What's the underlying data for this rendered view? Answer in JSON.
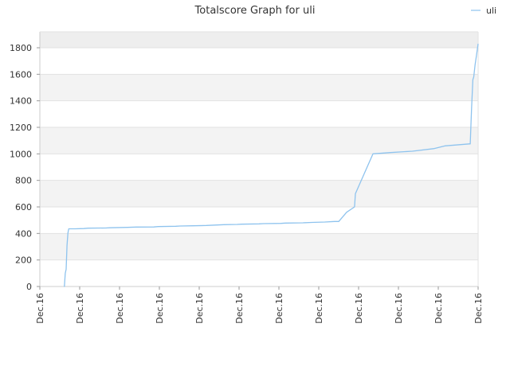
{
  "chart_data": {
    "type": "line",
    "title": "Totalscore Graph for uli",
    "xlabel": "",
    "ylabel": "",
    "ylim": [
      0,
      1920
    ],
    "yticks": [
      0,
      200,
      400,
      600,
      800,
      1000,
      1200,
      1400,
      1600,
      1800
    ],
    "xticks": [
      "Dec.16",
      "Dec.16",
      "Dec.16",
      "Dec.16",
      "Dec.16",
      "Dec.16",
      "Dec.16",
      "Dec.16",
      "Dec.16",
      "Dec.16",
      "Dec.16",
      "Dec.16"
    ],
    "grid": true,
    "legend": {
      "position": "top-right",
      "entries": [
        "uli"
      ]
    },
    "series": [
      {
        "name": "uli",
        "color": "#8ec3ee",
        "x": [
          0.055,
          0.056,
          0.058,
          0.06,
          0.062,
          0.064,
          0.065,
          0.066,
          0.068,
          0.07,
          0.073,
          0.08,
          0.1,
          0.11,
          0.15,
          0.16,
          0.2,
          0.22,
          0.26,
          0.27,
          0.31,
          0.32,
          0.35,
          0.38,
          0.4,
          0.42,
          0.45,
          0.46,
          0.5,
          0.51,
          0.55,
          0.56,
          0.6,
          0.62,
          0.65,
          0.672,
          0.682,
          0.7,
          0.718,
          0.72,
          0.74,
          0.76,
          0.8,
          0.85,
          0.9,
          0.924,
          0.98,
          0.982,
          0.985,
          0.988,
          0.99,
          0.993,
          0.997,
          1.0
        ],
        "values": [
          0,
          0,
          100,
          130,
          310,
          400,
          420,
          435,
          435,
          435,
          435,
          435,
          437,
          440,
          441,
          443,
          446,
          448,
          449,
          452,
          454,
          456,
          458,
          460,
          463,
          466,
          468,
          470,
          472,
          474,
          476,
          478,
          480,
          483,
          486,
          490,
          490,
          560,
          600,
          700,
          850,
          1000,
          1010,
          1020,
          1040,
          1060,
          1075,
          1075,
          1340,
          1560,
          1580,
          1670,
          1760,
          1830
        ]
      }
    ]
  }
}
